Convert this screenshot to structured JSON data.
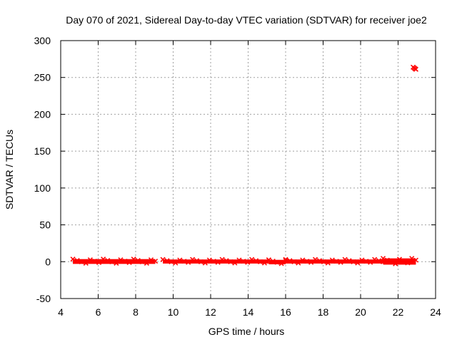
{
  "chart_data": {
    "type": "scatter",
    "title": "Day 070 of 2021, Sidereal Day-to-day VTEC variation (SDTVAR) for receiver joe2",
    "xlabel": "GPS time / hours",
    "ylabel": "SDTVAR / TECUs",
    "xlim": [
      4,
      24
    ],
    "ylim": [
      -50,
      300
    ],
    "xticks": [
      4,
      6,
      8,
      10,
      12,
      14,
      16,
      18,
      20,
      22,
      24
    ],
    "yticks": [
      -50,
      0,
      50,
      100,
      150,
      200,
      250,
      300
    ],
    "grid": true,
    "marker_color": "#ff0000",
    "series": [
      {
        "segments": [
          {
            "x_start": 4.65,
            "x_end": 9.05,
            "y_min": -3,
            "y_max": 3.5
          },
          {
            "x_start": 9.45,
            "x_end": 15.1,
            "y_min": -2.5,
            "y_max": 3
          },
          {
            "x_start": 15.1,
            "x_end": 16.0,
            "y_min": -3.5,
            "y_max": 2.5
          },
          {
            "x_start": 16.0,
            "x_end": 21.2,
            "y_min": -2.5,
            "y_max": 3
          },
          {
            "x_start": 21.2,
            "x_end": 22.95,
            "y_min": -4,
            "y_max": 4.5
          }
        ],
        "outliers": [
          {
            "x": 22.8,
            "y": 264
          },
          {
            "x": 22.85,
            "y": 263
          },
          {
            "x": 22.9,
            "y": 262
          },
          {
            "x": 22.95,
            "y": 261
          }
        ]
      }
    ]
  }
}
